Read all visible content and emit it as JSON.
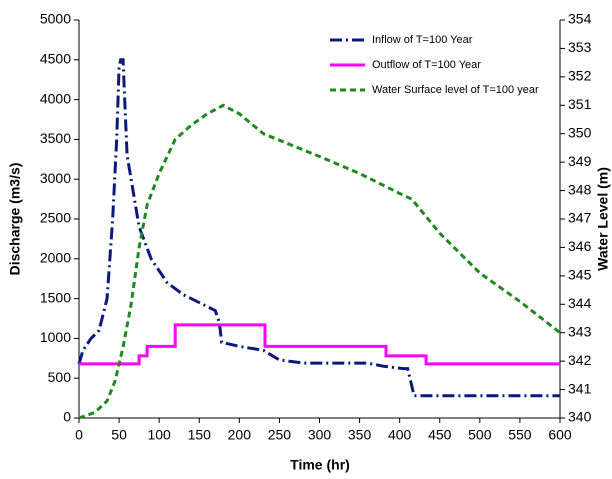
{
  "chart_data": {
    "type": "line",
    "xlabel": "Time (hr)",
    "ylabel": "Discharge  (m3/s)",
    "y2label": "Water Level  (m)",
    "xlim": [
      0,
      600
    ],
    "xticks": [
      0,
      50,
      100,
      150,
      200,
      250,
      300,
      350,
      400,
      450,
      500,
      550,
      600
    ],
    "ylim": [
      0,
      5000
    ],
    "yticks": [
      0,
      500,
      1000,
      1500,
      2000,
      2500,
      3000,
      3500,
      4000,
      4500,
      5000
    ],
    "y2lim": [
      340,
      354
    ],
    "y2ticks": [
      340,
      341,
      342,
      343,
      344,
      345,
      346,
      347,
      348,
      349,
      350,
      351,
      352,
      353,
      354
    ],
    "grid": false,
    "legend": "upper right",
    "series": [
      {
        "name": "Inflow of T=100 Year",
        "color": "#0a1a7a",
        "dash": "dash-dot",
        "axis": "y",
        "x": [
          0,
          5,
          15,
          25,
          35,
          42,
          47,
          50,
          52,
          55,
          57,
          60,
          65,
          75,
          90,
          110,
          130,
          150,
          170,
          175,
          178,
          200,
          230,
          250,
          280,
          300,
          360,
          380,
          405,
          410,
          418,
          600
        ],
        "values": [
          680,
          850,
          1000,
          1100,
          1500,
          2500,
          3500,
          4400,
          4500,
          4500,
          4000,
          3300,
          3000,
          2400,
          2000,
          1700,
          1550,
          1450,
          1350,
          1200,
          950,
          900,
          850,
          730,
          690,
          690,
          690,
          650,
          620,
          620,
          280,
          280
        ]
      },
      {
        "name": "Outflow of T=100 Year",
        "color": "#ff00ff",
        "dash": "solid",
        "axis": "y",
        "x": [
          0,
          75,
          75,
          85,
          85,
          120,
          120,
          232,
          232,
          383,
          383,
          433,
          433,
          600
        ],
        "values": [
          680,
          680,
          780,
          780,
          900,
          900,
          1170,
          1170,
          900,
          900,
          780,
          780,
          680,
          680
        ]
      },
      {
        "name": "Water Surface level of T=100 year",
        "color": "#1e8a1e",
        "dash": "dashed",
        "axis": "y2",
        "x": [
          0,
          20,
          35,
          45,
          55,
          65,
          75,
          85,
          100,
          120,
          140,
          160,
          180,
          200,
          230,
          300,
          350,
          400,
          415,
          450,
          500,
          550,
          600
        ],
        "values": [
          340,
          340.2,
          340.6,
          341.3,
          342.5,
          344,
          346,
          347.5,
          348.6,
          349.8,
          350.3,
          350.7,
          351,
          350.7,
          350,
          349.2,
          348.6,
          347.9,
          347.7,
          346.5,
          345.1,
          344.1,
          343
        ]
      }
    ]
  }
}
